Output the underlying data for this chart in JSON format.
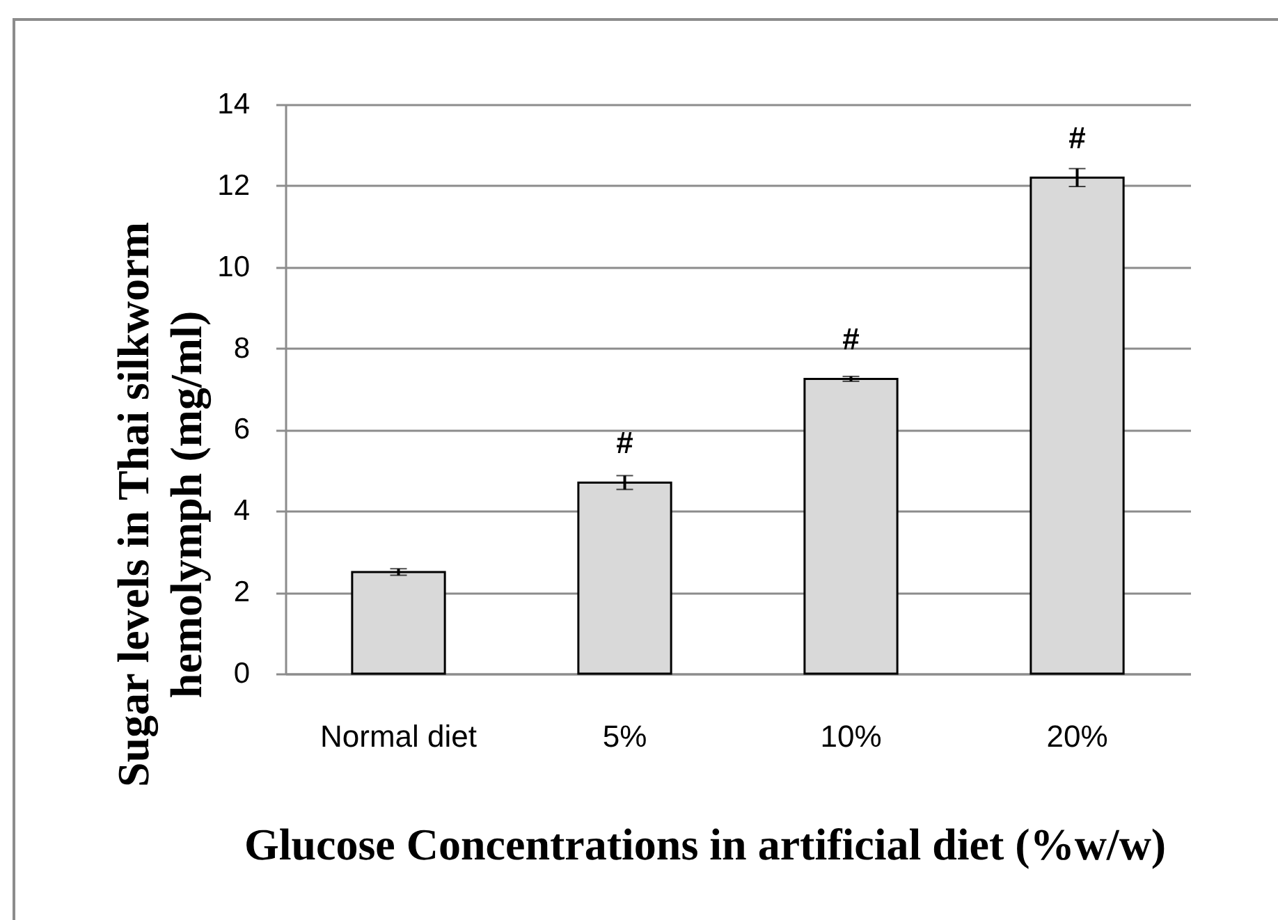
{
  "chart_data": {
    "type": "bar",
    "xlabel": "Glucose Concentrations in artificial diet (%w/w)",
    "ylabel": "Sugar levels in Thai silkworm hemolymph (mg/ml)",
    "categories": [
      "Normal diet",
      "5%",
      "10%",
      "20%"
    ],
    "values": [
      2.5,
      4.7,
      7.25,
      12.2
    ],
    "errors": [
      0.08,
      0.17,
      0.06,
      0.22
    ],
    "color": "#d9d9d9",
    "ylim": [
      0,
      14
    ],
    "yticks": [
      0,
      2,
      4,
      6,
      8,
      10,
      12,
      14
    ],
    "grid": "y",
    "annotations": [
      {
        "text": "#",
        "x": "5%",
        "y": 4.7
      },
      {
        "text": "#",
        "x": "10%",
        "y": 7.25
      },
      {
        "text": "#",
        "x": "20%",
        "y": 12.2
      }
    ]
  }
}
